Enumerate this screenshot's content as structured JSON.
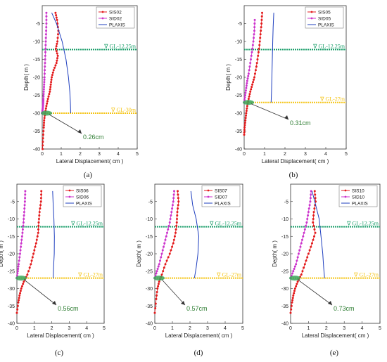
{
  "chart_data": [
    {
      "type": "line",
      "caption": "(a)",
      "xlabel": "Lateral Displacement( cm )",
      "ylabel": "Depth( m )",
      "xlim": [
        0,
        5
      ],
      "ylim": [
        -40,
        0
      ],
      "xticks": [
        0,
        1,
        2,
        3,
        4,
        5
      ],
      "yticks": [
        -40,
        -35,
        -30,
        -25,
        -20,
        -15,
        -10,
        -5
      ],
      "grid": false,
      "legend_position": "top-right",
      "series": [
        {
          "name": "SIS02",
          "color": "#e31a1c",
          "x": [
            0.7,
            0.78,
            0.85,
            0.8,
            0.72,
            0.82,
            0.75,
            0.6,
            0.5,
            0.45,
            0.4,
            0.3,
            0.22,
            0.15,
            0.1,
            0.08,
            0.04,
            0.02
          ],
          "y": [
            -2,
            -4,
            -7,
            -10,
            -12,
            -14,
            -16,
            -18,
            -20,
            -22,
            -24,
            -26,
            -28,
            -30,
            -32,
            -34,
            -37,
            -40
          ]
        },
        {
          "name": "SID02",
          "color": "#cc33cc",
          "x": [
            0.22,
            0.22,
            0.2,
            0.18,
            0.16,
            0.14,
            0.12,
            0.1,
            0.08,
            0.06,
            0.05,
            0.04,
            0.02,
            0.0
          ],
          "y": [
            -2,
            -5,
            -8,
            -11,
            -14,
            -17,
            -20,
            -22,
            -24,
            -26,
            -27,
            -28,
            -29,
            -30
          ]
        },
        {
          "name": "PLAXIS",
          "color": "#1f3fbf",
          "x": [
            0.5,
            0.75,
            1.05,
            1.25,
            1.38,
            1.45,
            1.48,
            1.5
          ],
          "y": [
            -2,
            -5,
            -10,
            -15,
            -20,
            -24,
            -27,
            -30
          ]
        }
      ],
      "levels": [
        {
          "label": "∇ GL-12.25m",
          "depth": -12.25,
          "color": "#1a9e6a"
        },
        {
          "label": "∇ GL-30m",
          "depth": -30,
          "color": "#f5c518"
        }
      ],
      "annotation": "0.26cm"
    },
    {
      "type": "line",
      "caption": "(b)",
      "xlabel": "Lateral Displacement( cm )",
      "ylabel": "Depth( m )",
      "xlim": [
        0,
        5
      ],
      "ylim": [
        -40,
        0
      ],
      "xticks": [
        0,
        1,
        2,
        3,
        4,
        5
      ],
      "yticks": [
        -40,
        -35,
        -30,
        -25,
        -20,
        -15,
        -10,
        -5
      ],
      "grid": false,
      "legend_position": "top-right",
      "series": [
        {
          "name": "SIS05",
          "color": "#e31a1c",
          "x": [
            0.88,
            0.85,
            0.8,
            0.75,
            0.68,
            0.6,
            0.5,
            0.4,
            0.3,
            0.22,
            0.15,
            0.1,
            0.06,
            0.02,
            0.0
          ],
          "y": [
            -2,
            -5,
            -8,
            -11,
            -14,
            -17,
            -20,
            -22,
            -24,
            -26,
            -28,
            -30,
            -32,
            -34,
            -36
          ]
        },
        {
          "name": "SID05",
          "color": "#cc33cc",
          "x": [
            0.52,
            0.5,
            0.45,
            0.38,
            0.3,
            0.22,
            0.15,
            0.1,
            0.05,
            0.0
          ],
          "y": [
            -4,
            -7,
            -10,
            -13,
            -16,
            -19,
            -21,
            -23,
            -25,
            -27
          ]
        },
        {
          "name": "PLAXIS",
          "color": "#1f3fbf",
          "x": [
            1.45,
            1.42,
            1.4,
            1.38,
            1.36,
            1.34,
            1.32
          ],
          "y": [
            -2,
            -6,
            -10,
            -15,
            -20,
            -24,
            -27
          ]
        }
      ],
      "levels": [
        {
          "label": "∇ GL-12.25m",
          "depth": -12.25,
          "color": "#1a9e6a"
        },
        {
          "label": "∇ GL-27m",
          "depth": -27,
          "color": "#f5c518"
        }
      ],
      "annotation": "0.31cm"
    },
    {
      "type": "line",
      "caption": "(c)",
      "xlabel": "Lateral Displacement( cm )",
      "ylabel": "Depth( m )",
      "xlim": [
        0,
        5
      ],
      "ylim": [
        -40,
        0
      ],
      "xticks": [
        0,
        1,
        2,
        3,
        4,
        5
      ],
      "yticks": [
        -40,
        -35,
        -30,
        -25,
        -20,
        -15,
        -10,
        -5
      ],
      "grid": false,
      "legend_position": "top-right",
      "series": [
        {
          "name": "SIS06",
          "color": "#e31a1c",
          "x": [
            1.4,
            1.38,
            1.3,
            1.25,
            1.22,
            1.1,
            0.95,
            0.8,
            0.6,
            0.4,
            0.25,
            0.15,
            0.08,
            0.0
          ],
          "y": [
            -2,
            -5,
            -8,
            -11,
            -14,
            -17,
            -20,
            -23,
            -26,
            -28,
            -30,
            -32,
            -34,
            -37
          ]
        },
        {
          "name": "SID06",
          "color": "#cc33cc",
          "x": [
            0.48,
            0.46,
            0.42,
            0.38,
            0.32,
            0.25,
            0.18,
            0.1,
            0.05,
            0.0
          ],
          "y": [
            -2,
            -5,
            -8,
            -11,
            -14,
            -17,
            -20,
            -23,
            -25,
            -27
          ]
        },
        {
          "name": "PLAXIS",
          "color": "#1f3fbf",
          "x": [
            2.05,
            2.08,
            2.12,
            2.15,
            2.14,
            2.1,
            2.08
          ],
          "y": [
            -2,
            -6,
            -10,
            -15,
            -20,
            -24,
            -27
          ]
        }
      ],
      "levels": [
        {
          "label": "∇ GL-12.25m",
          "depth": -12.25,
          "color": "#1a9e6a"
        },
        {
          "label": "∇ GL-27m",
          "depth": -27,
          "color": "#f5c518"
        }
      ],
      "annotation": "0.56cm"
    },
    {
      "type": "line",
      "caption": "(d)",
      "xlabel": "Lateral Displacement( cm )",
      "ylabel": "Depth( m )",
      "xlim": [
        0,
        5
      ],
      "ylim": [
        -40,
        0
      ],
      "xticks": [
        0,
        1,
        2,
        3,
        4,
        5
      ],
      "yticks": [
        -40,
        -35,
        -30,
        -25,
        -20,
        -15,
        -10,
        -5
      ],
      "grid": false,
      "legend_position": "top-right",
      "series": [
        {
          "name": "SIS07",
          "color": "#e31a1c",
          "x": [
            1.3,
            1.35,
            1.28,
            1.25,
            1.18,
            1.05,
            0.85,
            0.6,
            0.4,
            0.25,
            0.15,
            0.08,
            0.0
          ],
          "y": [
            -2,
            -5,
            -8,
            -11,
            -14,
            -17,
            -20,
            -23,
            -26,
            -28,
            -30,
            -33,
            -37
          ]
        },
        {
          "name": "SID07",
          "color": "#cc33cc",
          "x": [
            1.1,
            1.05,
            0.95,
            0.85,
            0.7,
            0.55,
            0.4,
            0.25,
            0.12,
            0.0
          ],
          "y": [
            -2,
            -5,
            -8,
            -11,
            -14,
            -17,
            -20,
            -23,
            -25,
            -27
          ]
        },
        {
          "name": "PLAXIS",
          "color": "#1f3fbf",
          "x": [
            2.05,
            2.15,
            2.35,
            2.5,
            2.45,
            2.35,
            2.25
          ],
          "y": [
            -2,
            -6,
            -10,
            -15,
            -20,
            -24,
            -27
          ]
        }
      ],
      "levels": [
        {
          "label": "∇ GL-12.25m",
          "depth": -12.25,
          "color": "#1a9e6a"
        },
        {
          "label": "∇ GL-27m",
          "depth": -27,
          "color": "#f5c518"
        }
      ],
      "annotation": "0.57cm"
    },
    {
      "type": "line",
      "caption": "(e)",
      "xlabel": "Lateral Displacement( cm )",
      "ylabel": "Depth( m )",
      "xlim": [
        0,
        5
      ],
      "ylim": [
        -40,
        0
      ],
      "xticks": [
        0,
        1,
        2,
        3,
        4,
        5
      ],
      "yticks": [
        -40,
        -35,
        -30,
        -25,
        -20,
        -15,
        -10,
        -5
      ],
      "grid": false,
      "legend_position": "top-right",
      "series": [
        {
          "name": "SIS10",
          "color": "#e31a1c",
          "x": [
            1.35,
            1.4,
            1.3,
            1.25,
            1.38,
            1.2,
            1.0,
            0.8,
            0.6,
            0.4,
            0.25,
            0.15,
            0.08,
            0.0
          ],
          "y": [
            -2,
            -5,
            -8,
            -11,
            -14,
            -17,
            -20,
            -23,
            -26,
            -28,
            -30,
            -32,
            -34,
            -37
          ]
        },
        {
          "name": "SID10",
          "color": "#cc33cc",
          "x": [
            1.15,
            1.1,
            1.0,
            0.9,
            0.75,
            0.6,
            0.45,
            0.3,
            0.15,
            0.0
          ],
          "y": [
            -2,
            -5,
            -8,
            -11,
            -14,
            -17,
            -20,
            -23,
            -25,
            -27
          ]
        },
        {
          "name": "PLAXIS",
          "color": "#1f3fbf",
          "x": [
            1.2,
            1.4,
            1.6,
            1.7,
            1.8,
            1.85,
            1.9
          ],
          "y": [
            -2,
            -6,
            -10,
            -15,
            -20,
            -24,
            -27
          ]
        }
      ],
      "levels": [
        {
          "label": "∇ GL-12.25m",
          "depth": -12.25,
          "color": "#1a9e6a"
        },
        {
          "label": "∇ GL-27m",
          "depth": -27,
          "color": "#f5c518"
        }
      ],
      "annotation": "0.73cm"
    }
  ]
}
